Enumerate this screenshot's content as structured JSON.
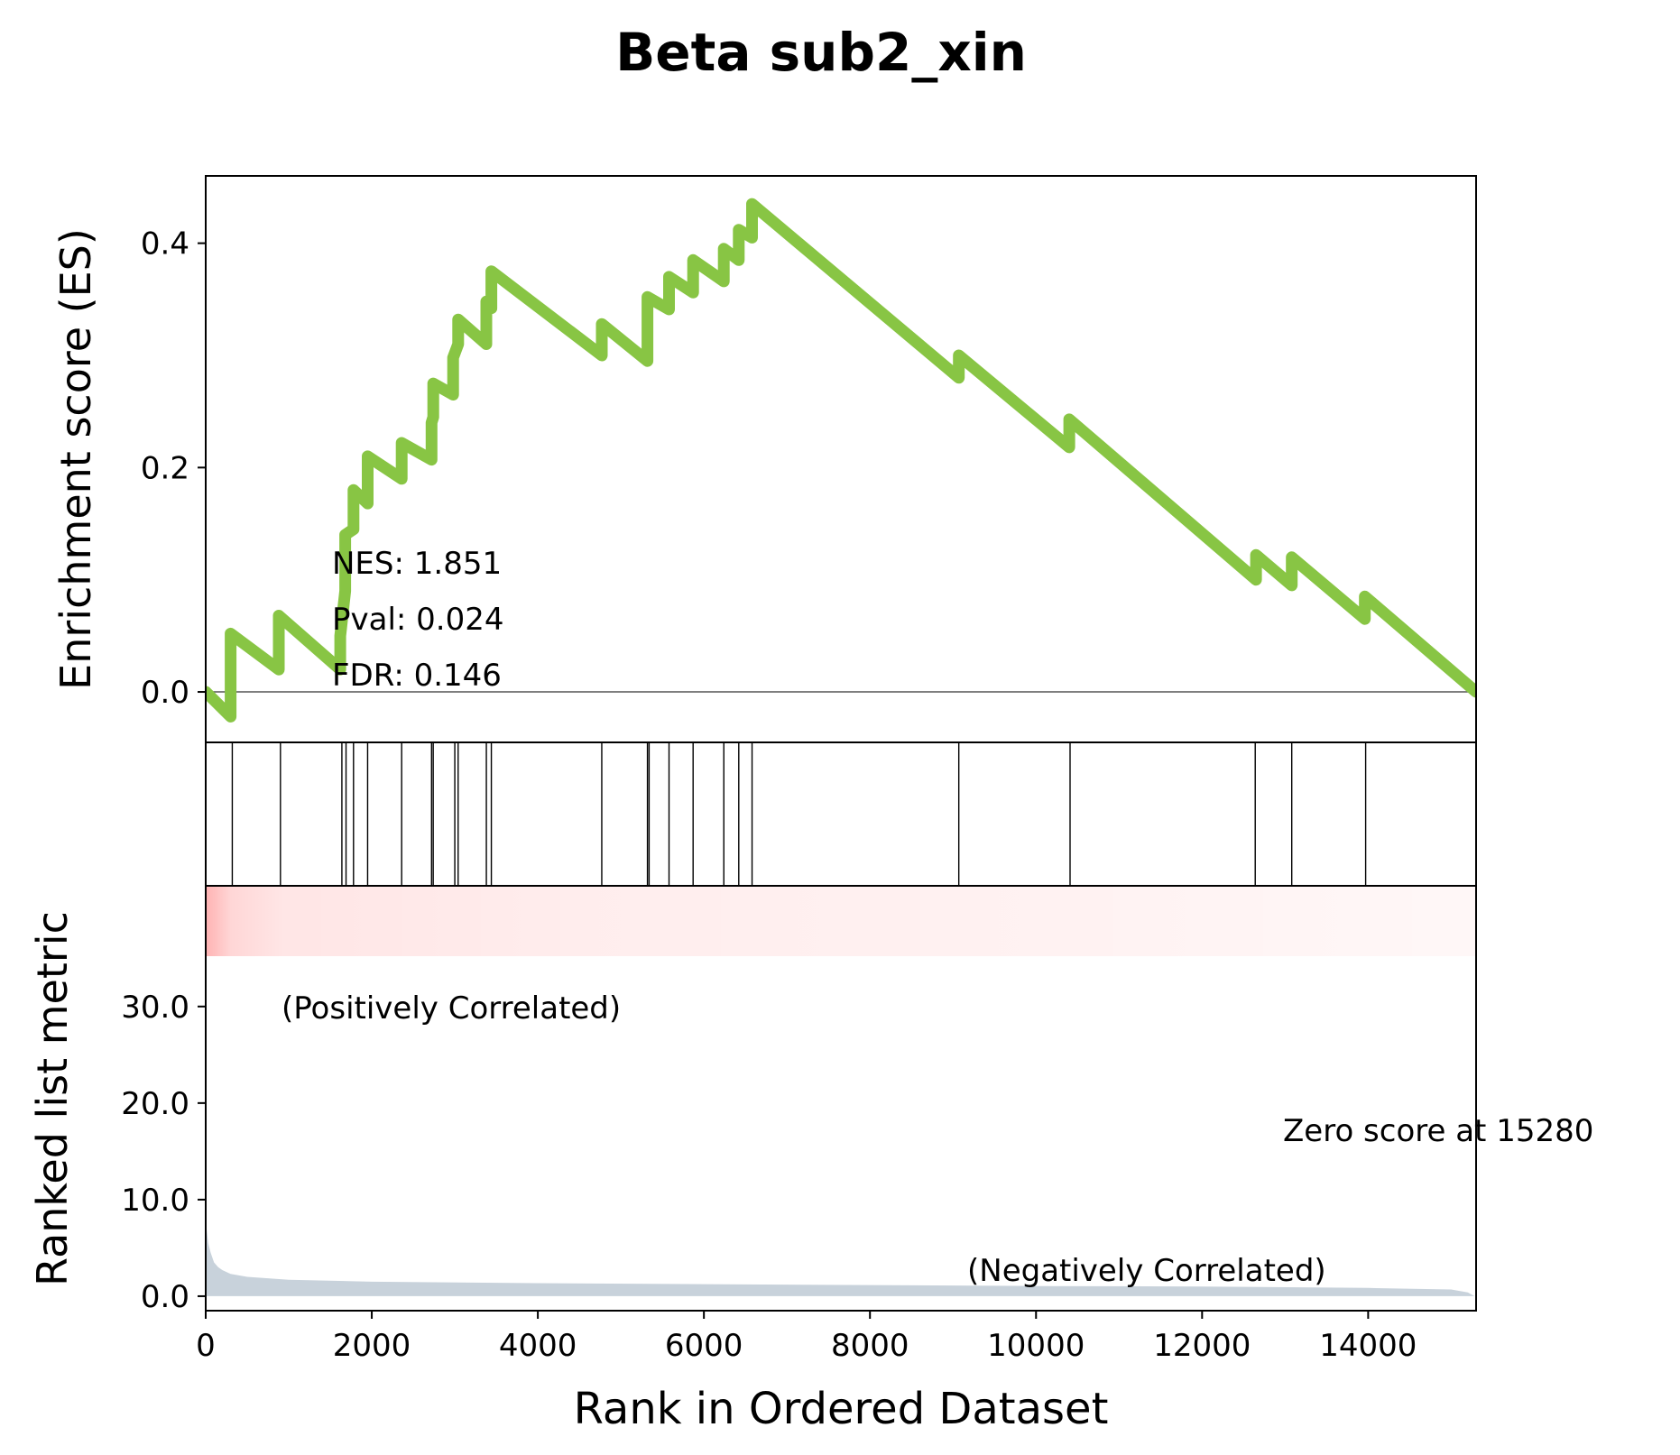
{
  "figure": {
    "title": "Beta sub2_xin"
  },
  "chart_data": {
    "type": "line",
    "title": "Beta sub2_xin",
    "xlabel": "Rank in Ordered Dataset",
    "xlim": [
      0,
      15300
    ],
    "x_ticks": [
      0,
      2000,
      4000,
      6000,
      8000,
      10000,
      12000,
      14000
    ],
    "x_tick_labels": [
      "0",
      "2000",
      "4000",
      "6000",
      "8000",
      "10000",
      "12000",
      "14000"
    ],
    "es_panel": {
      "ylabel": "Enrichment score (ES)",
      "ylim": [
        -0.045,
        0.46
      ],
      "y_ticks": [
        0.0,
        0.2,
        0.4
      ],
      "y_tick_labels": [
        "0.0",
        "0.2",
        "0.4"
      ],
      "series": [
        {
          "color": "#88c544",
          "x": [
            0,
            300,
            300,
            880,
            880,
            1620,
            1620,
            1680,
            1680,
            1780,
            1780,
            1950,
            1950,
            2360,
            2360,
            2720,
            2720,
            2740,
            2740,
            2980,
            2980,
            3040,
            3040,
            3380,
            3380,
            3440,
            3440,
            4770,
            4770,
            5320,
            5320,
            5580,
            5580,
            5870,
            5870,
            6240,
            6240,
            6420,
            6420,
            6580,
            6580,
            9070,
            9070,
            10400,
            10400,
            12650,
            12650,
            13080,
            13080,
            13960,
            13960,
            15300
          ],
          "y": [
            0.0,
            -0.022,
            0.052,
            0.02,
            0.068,
            0.02,
            0.05,
            0.09,
            0.14,
            0.145,
            0.18,
            0.168,
            0.21,
            0.19,
            0.222,
            0.207,
            0.24,
            0.245,
            0.275,
            0.265,
            0.298,
            0.31,
            0.332,
            0.31,
            0.348,
            0.342,
            0.375,
            0.3,
            0.328,
            0.295,
            0.352,
            0.341,
            0.37,
            0.356,
            0.385,
            0.366,
            0.395,
            0.385,
            0.412,
            0.405,
            0.435,
            0.28,
            0.3,
            0.218,
            0.243,
            0.1,
            0.122,
            0.095,
            0.12,
            0.065,
            0.085,
            0.0
          ]
        }
      ],
      "zero_line": 0.0,
      "annotations": {
        "nes": "NES: 1.851",
        "pval": "Pval: 0.024",
        "fdr": "FDR: 0.146"
      }
    },
    "hits_panel": {
      "hit_positions": [
        320,
        900,
        1640,
        1690,
        1780,
        1950,
        2360,
        2720,
        2740,
        3000,
        3040,
        3380,
        3440,
        4770,
        5320,
        5340,
        5580,
        5870,
        6240,
        6420,
        6580,
        9070,
        10410,
        12640,
        13080,
        13970
      ]
    },
    "ranked_panel": {
      "ylabel": "Ranked list metric",
      "ylim": [
        -1.5,
        42.5
      ],
      "y_ticks": [
        0.0,
        10.0,
        20.0,
        30.0
      ],
      "y_tick_labels": [
        "0.0",
        "10.0",
        "20.0",
        "30.0"
      ],
      "fill_color": "#c8d2db",
      "area_x": [
        0,
        10,
        30,
        60,
        100,
        150,
        200,
        300,
        500,
        1000,
        2000,
        4000,
        6000,
        8000,
        10000,
        12000,
        14000,
        15000,
        15200,
        15280
      ],
      "area_y": [
        10.0,
        7.0,
        5.5,
        4.5,
        3.5,
        3.0,
        2.7,
        2.3,
        2.0,
        1.7,
        1.5,
        1.35,
        1.25,
        1.15,
        1.05,
        1.0,
        0.85,
        0.7,
        0.4,
        0.0
      ],
      "heat_color": "#ff0000",
      "pos_label": "(Positively Correlated)",
      "pos_color": "#ff0000",
      "neg_label": "(Negatively Correlated)",
      "neg_color": "#0000ff",
      "zero_label": "Zero score at 15280"
    }
  }
}
